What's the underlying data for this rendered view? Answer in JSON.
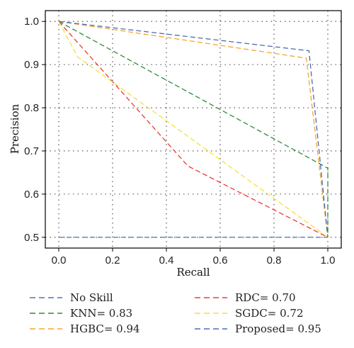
{
  "chart_data": {
    "type": "line",
    "title": "",
    "xlabel": "Recall",
    "ylabel": "Precision",
    "xlim": [
      -0.05,
      1.05
    ],
    "ylim": [
      0.475,
      1.025
    ],
    "xticks": [
      0.0,
      0.2,
      0.4,
      0.6,
      0.8,
      1.0
    ],
    "yticks": [
      0.5,
      0.6,
      0.7,
      0.8,
      0.9,
      1.0
    ],
    "xtick_labels": [
      "0.0",
      "0.2",
      "0.4",
      "0.6",
      "0.8",
      "1.0"
    ],
    "ytick_labels": [
      "0.5",
      "0.6",
      "0.7",
      "0.8",
      "0.9",
      "1.0"
    ],
    "grid": true,
    "legend_position": "bottom",
    "series": [
      {
        "name": "No Skill",
        "color": "#4a74b8",
        "x": [
          0.0,
          1.0
        ],
        "y": [
          0.5,
          0.5
        ]
      },
      {
        "name": "KNN= 0.83",
        "color": "#2e8b3a",
        "x": [
          0.0,
          1.0,
          1.0
        ],
        "y": [
          1.0,
          0.66,
          0.5
        ]
      },
      {
        "name": "HGBC= 0.94",
        "color": "#f4a62a",
        "x": [
          0.0,
          0.92,
          1.0
        ],
        "y": [
          1.0,
          0.915,
          0.5
        ]
      },
      {
        "name": "RDC= 0.70",
        "color": "#ee3a33",
        "x": [
          0.0,
          0.48,
          1.0
        ],
        "y": [
          1.0,
          0.665,
          0.5
        ]
      },
      {
        "name": "SGDC= 0.72",
        "color": "#f4e03a",
        "x": [
          0.0,
          0.07,
          1.0
        ],
        "y": [
          1.0,
          0.918,
          0.5
        ]
      },
      {
        "name": "Proposed= 0.95",
        "color": "#4a6bb8",
        "x": [
          0.0,
          0.93,
          1.0
        ],
        "y": [
          1.0,
          0.932,
          0.5
        ]
      }
    ]
  }
}
